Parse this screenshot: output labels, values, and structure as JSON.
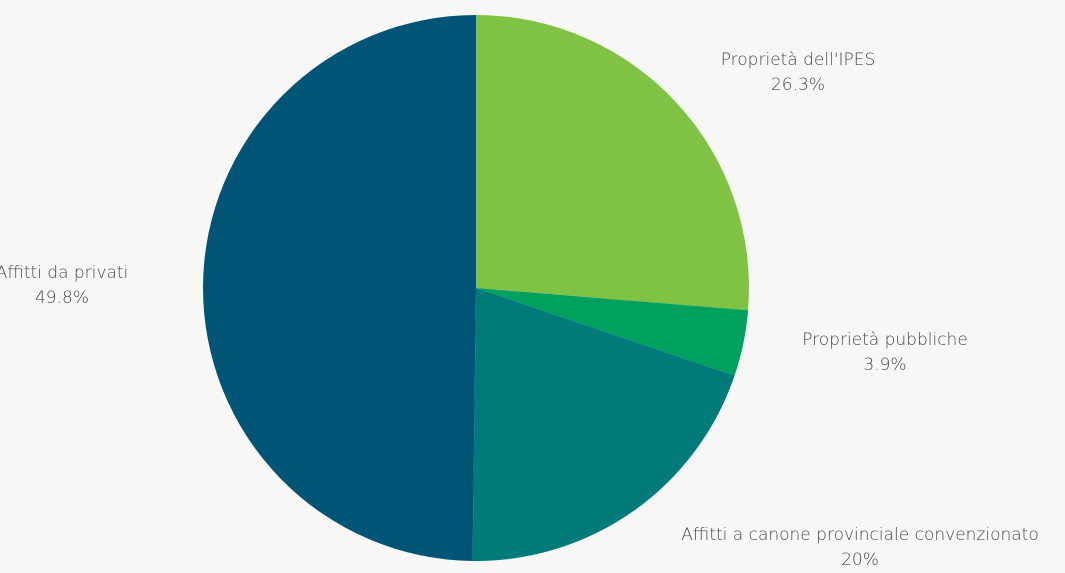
{
  "chart_data": {
    "type": "pie",
    "start_angle": "12 o'clock",
    "direction": "clockwise",
    "slices": [
      {
        "label": "Proprietà dell'IPES",
        "value_label": "26.3%",
        "value": 26.3,
        "color": "#80c243"
      },
      {
        "label": "Proprietà pubbliche",
        "value_label": "3.9%",
        "value": 3.9,
        "color": "#00a05f"
      },
      {
        "label": "Affitti a canone provinciale convenzionato",
        "value_label": "20%",
        "value": 20.0,
        "color": "#007b7a"
      },
      {
        "label": "Affitti da privati",
        "value_label": "49.8%",
        "value": 49.8,
        "color": "#005577"
      }
    ]
  }
}
